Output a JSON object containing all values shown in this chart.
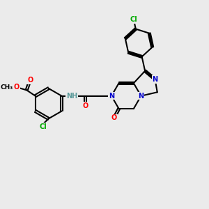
{
  "bg_color": "#ebebeb",
  "bond_color": "#000000",
  "bond_width": 1.5,
  "atom_colors": {
    "C": "#000000",
    "N": "#0000cc",
    "O": "#ff0000",
    "Cl": "#00aa00",
    "H": "#5a9a9a"
  },
  "font_size": 7.0,
  "fig_size": [
    3.0,
    3.0
  ],
  "dpi": 100
}
